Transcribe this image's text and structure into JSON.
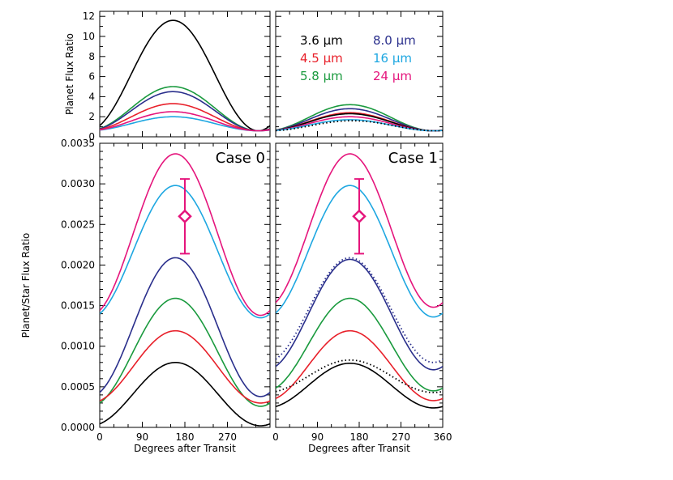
{
  "chart_data": [
    {
      "panel": "top-left",
      "type": "line",
      "ylabel": "Planet Flux Ratio",
      "xlim": [
        0,
        360
      ],
      "ylim": [
        0,
        12.5
      ],
      "yticks": [
        "0",
        "2",
        "4",
        "6",
        "8",
        "10",
        "12"
      ],
      "series": [
        {
          "name": "3.6 μm",
          "color": "#000000",
          "min": 0.6,
          "max": 11.6,
          "peak_x": 155
        },
        {
          "name": "5.8 μm",
          "color": "#1a9a3e",
          "min": 0.6,
          "max": 5.0,
          "peak_x": 155
        },
        {
          "name": "8.0 μm",
          "color": "#2a2f8c",
          "min": 0.6,
          "max": 4.5,
          "peak_x": 155
        },
        {
          "name": "4.5 μm",
          "color": "#e8202a",
          "min": 0.6,
          "max": 3.3,
          "peak_x": 155
        },
        {
          "name": "16 μm",
          "color": "#1ea7e1",
          "min": 0.6,
          "max": 2.0,
          "peak_x": 155
        },
        {
          "name": "24 μm",
          "color": "#e5157c",
          "min": 0.6,
          "max": 2.5,
          "peak_x": 155
        }
      ]
    },
    {
      "panel": "top-right",
      "type": "line",
      "xlim": [
        0,
        360
      ],
      "ylim": [
        0,
        12.5
      ],
      "legend": [
        {
          "name": "3.6 μm",
          "color": "#000000"
        },
        {
          "name": "8.0 μm",
          "color": "#2a2f8c"
        },
        {
          "name": "4.5 μm",
          "color": "#e8202a"
        },
        {
          "name": "16 μm",
          "color": "#1ea7e1"
        },
        {
          "name": "5.8 μm",
          "color": "#1a9a3e"
        },
        {
          "name": "24 μm",
          "color": "#e5157c"
        }
      ],
      "series": [
        {
          "name": "5.8 μm",
          "color": "#1a9a3e",
          "min": 0.6,
          "max": 3.2,
          "peak_x": 160
        },
        {
          "name": "8.0 μm",
          "color": "#2a2f8c",
          "min": 0.6,
          "max": 2.8,
          "peak_x": 160
        },
        {
          "name": "4.5 μm",
          "color": "#e8202a",
          "min": 0.6,
          "max": 2.4,
          "peak_x": 160
        },
        {
          "name": "3.6 μm",
          "color": "#000000",
          "min": 0.6,
          "max": 2.3,
          "peak_x": 160
        },
        {
          "name": "24 μm",
          "color": "#e5157c",
          "min": 0.6,
          "max": 2.0,
          "peak_x": 160
        },
        {
          "name": "16 μm",
          "color": "#1ea7e1",
          "min": 0.6,
          "max": 1.7,
          "peak_x": 160
        },
        {
          "name": "3.6 μm (dotted)",
          "color": "#000000",
          "dotted": true,
          "min": 0.6,
          "max": 1.6,
          "peak_x": 165
        }
      ]
    },
    {
      "panel": "bottom-left",
      "type": "line",
      "annotation": "Case 0",
      "xlabel": "Degrees after Transit",
      "ylabel": "Planet/Star Flux Ratio",
      "xlim": [
        0,
        360
      ],
      "ylim": [
        0,
        0.0035
      ],
      "xticks": [
        "0",
        "90",
        "180",
        "270"
      ],
      "yticks": [
        "0.0000",
        "0.0005",
        "0.0010",
        "0.0015",
        "0.0020",
        "0.0025",
        "0.0030",
        "0.0035"
      ],
      "series": [
        {
          "name": "24 μm",
          "color": "#e5157c",
          "min": 0.00138,
          "max": 0.00337,
          "peak_x": 160
        },
        {
          "name": "16 μm",
          "color": "#1ea7e1",
          "min": 0.00135,
          "max": 0.00298,
          "peak_x": 160
        },
        {
          "name": "8.0 μm",
          "color": "#2a2f8c",
          "min": 0.00038,
          "max": 0.00209,
          "peak_x": 160
        },
        {
          "name": "5.8 μm",
          "color": "#1a9a3e",
          "min": 0.00026,
          "max": 0.00159,
          "peak_x": 160
        },
        {
          "name": "4.5 μm",
          "color": "#e8202a",
          "min": 0.0003,
          "max": 0.00119,
          "peak_x": 160
        },
        {
          "name": "3.6 μm",
          "color": "#000000",
          "min": 2e-05,
          "max": 0.0008,
          "peak_x": 160
        }
      ],
      "errorbar": {
        "x": 180,
        "y": 0.0026,
        "ylow": 0.00214,
        "yhigh": 0.00306,
        "color": "#e5157c"
      }
    },
    {
      "panel": "bottom-right",
      "type": "line",
      "annotation": "Case 1",
      "xlabel": "Degrees after Transit",
      "xlim": [
        0,
        360
      ],
      "ylim": [
        0,
        0.0035
      ],
      "xticks": [
        "0",
        "90",
        "180",
        "270",
        "360"
      ],
      "series": [
        {
          "name": "24 μm",
          "color": "#e5157c",
          "min": 0.00148,
          "max": 0.00337,
          "peak_x": 160
        },
        {
          "name": "16 μm",
          "color": "#1ea7e1",
          "min": 0.00136,
          "max": 0.00298,
          "peak_x": 160
        },
        {
          "name": "8.0 μm",
          "color": "#2a2f8c",
          "min": 0.00071,
          "max": 0.00207,
          "peak_x": 160
        },
        {
          "name": "8.0 μm (dotted)",
          "color": "#2a2f8c",
          "dotted": true,
          "min": 0.0008,
          "max": 0.00209,
          "peak_x": 160
        },
        {
          "name": "5.8 μm",
          "color": "#1a9a3e",
          "min": 0.00045,
          "max": 0.00159,
          "peak_x": 160
        },
        {
          "name": "4.5 μm",
          "color": "#e8202a",
          "min": 0.00033,
          "max": 0.00119,
          "peak_x": 160
        },
        {
          "name": "3.6 μm",
          "color": "#000000",
          "min": 0.00024,
          "max": 0.00079,
          "peak_x": 160
        },
        {
          "name": "3.6 μm (dotted)",
          "color": "#000000",
          "dotted": true,
          "min": 0.00043,
          "max": 0.00083,
          "peak_x": 160
        }
      ],
      "errorbar": {
        "x": 180,
        "y": 0.0026,
        "ylow": 0.00214,
        "yhigh": 0.00306,
        "color": "#e5157c"
      }
    }
  ]
}
